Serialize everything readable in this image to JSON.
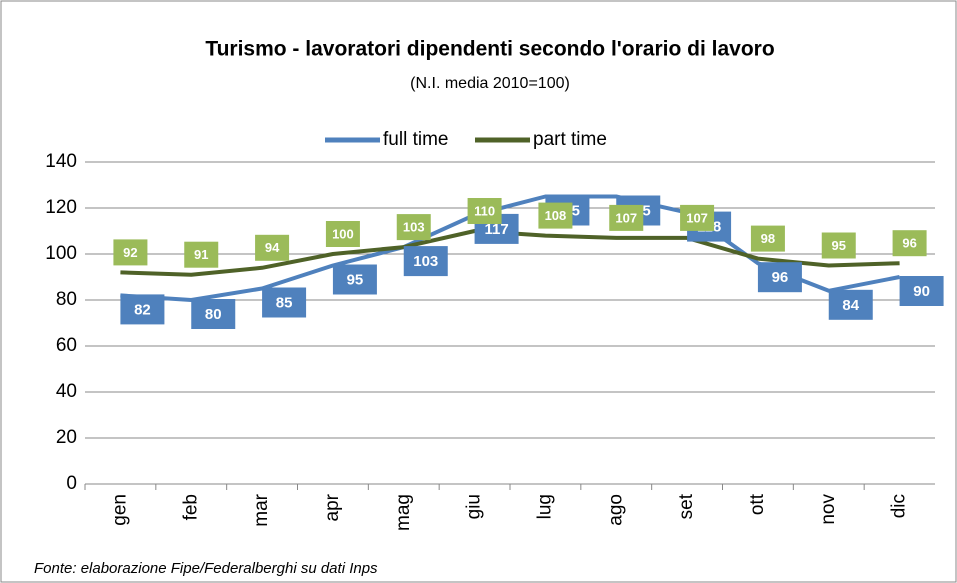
{
  "chart_data": {
    "type": "line",
    "title": "Turismo - lavoratori dipendenti secondo l'orario di lavoro",
    "subtitle": "(N.I. media 2010=100)",
    "categories": [
      "gen",
      "feb",
      "mar",
      "apr",
      "mag",
      "giu",
      "lug",
      "ago",
      "set",
      "ott",
      "nov",
      "dic"
    ],
    "series": [
      {
        "name": "full time",
        "color": "#4f81bd",
        "label_color": "#4f81bd",
        "values": [
          82,
          80,
          85,
          95,
          103,
          117,
          125,
          125,
          118,
          96,
          84,
          90
        ]
      },
      {
        "name": "part time",
        "color": "#4f6228",
        "label_color": "#9bbb59",
        "values": [
          92,
          91,
          94,
          100,
          103,
          110,
          108,
          107,
          107,
          98,
          95,
          96
        ]
      }
    ],
    "ylim": [
      0,
      140
    ],
    "yticks": [
      0,
      20,
      40,
      60,
      80,
      100,
      120,
      140
    ],
    "grid": true,
    "legend": "top",
    "source": "Fonte: elaborazione Fipe/Federalberghi su dati Inps"
  }
}
